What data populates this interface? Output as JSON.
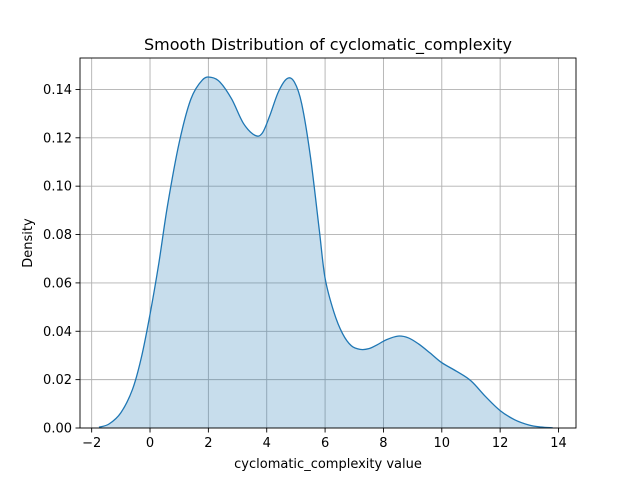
{
  "chart_data": {
    "type": "area",
    "title": "Smooth Distribution of cyclomatic_complexity",
    "xlabel": "cyclomatic_complexity value",
    "ylabel": "Density",
    "xlim": [
      -2.4,
      14.6
    ],
    "ylim": [
      0,
      0.153
    ],
    "xticks": [
      -2,
      0,
      2,
      4,
      6,
      8,
      10,
      12,
      14
    ],
    "xtick_labels": [
      "−2",
      "0",
      "2",
      "4",
      "6",
      "8",
      "10",
      "12",
      "14"
    ],
    "yticks": [
      0.0,
      0.02,
      0.04,
      0.06,
      0.08,
      0.1,
      0.12,
      0.14
    ],
    "ytick_labels": [
      "0.00",
      "0.02",
      "0.04",
      "0.06",
      "0.08",
      "0.10",
      "0.12",
      "0.14"
    ],
    "grid": true,
    "line_color": "#1f77b4",
    "fill_color": "#1f77b4",
    "fill_opacity": 0.25,
    "series": [
      {
        "x": [
          -1.75,
          -1.4,
          -1.0,
          -0.6,
          -0.3,
          0.0,
          0.3,
          0.6,
          1.0,
          1.4,
          1.8,
          2.1,
          2.4,
          2.8,
          3.2,
          3.6,
          3.85,
          4.1,
          4.4,
          4.7,
          4.95,
          5.2,
          5.5,
          5.8,
          6.0,
          6.3,
          6.6,
          6.9,
          7.2,
          7.5,
          7.8,
          8.1,
          8.5,
          8.85,
          9.2,
          9.6,
          10.0,
          10.5,
          11.0,
          11.5,
          12.0,
          12.5,
          13.0,
          13.4,
          13.8
        ],
        "y": [
          0.0003,
          0.0017,
          0.0063,
          0.016,
          0.029,
          0.047,
          0.068,
          0.092,
          0.118,
          0.136,
          0.144,
          0.145,
          0.143,
          0.136,
          0.126,
          0.121,
          0.122,
          0.129,
          0.139,
          0.1445,
          0.143,
          0.134,
          0.112,
          0.082,
          0.062,
          0.048,
          0.039,
          0.034,
          0.0325,
          0.0328,
          0.0345,
          0.0365,
          0.038,
          0.0373,
          0.0348,
          0.031,
          0.027,
          0.0235,
          0.0195,
          0.013,
          0.0072,
          0.0034,
          0.0012,
          0.0004,
          0.0001
        ]
      }
    ]
  }
}
